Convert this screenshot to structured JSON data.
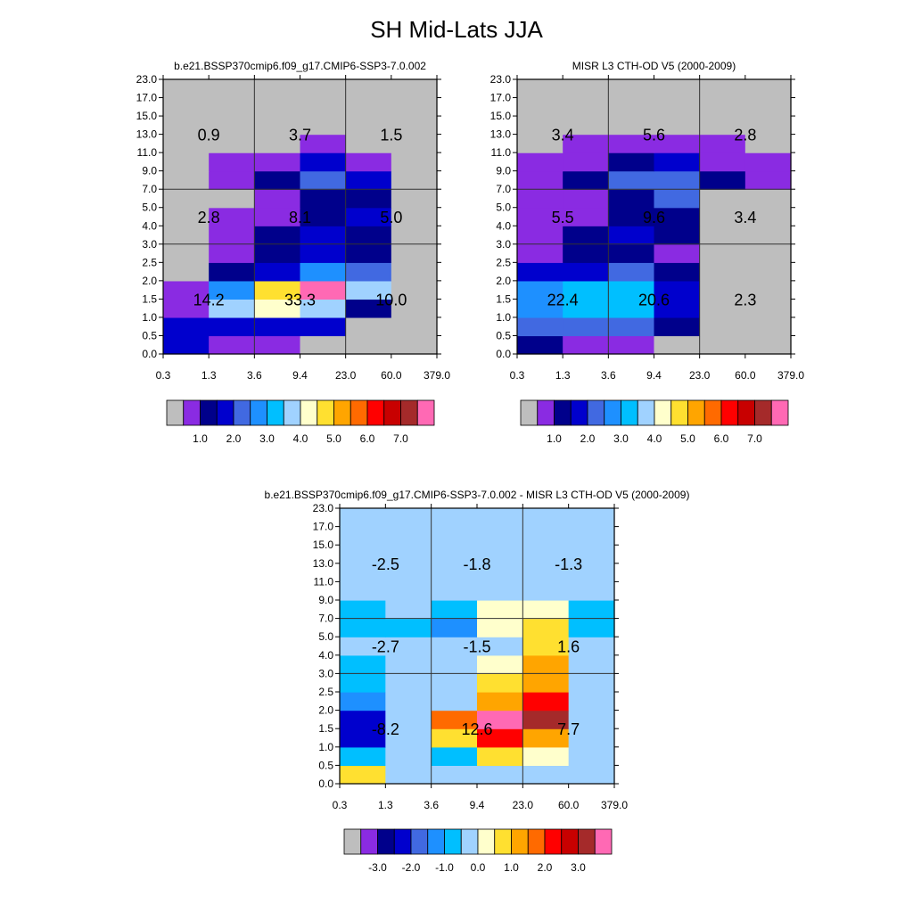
{
  "title": "SH Mid-Lats JJA",
  "palette": [
    "#bebebe",
    "#8a2be2",
    "#00008b",
    "#0000cd",
    "#4169e1",
    "#1e90ff",
    "#00bfff",
    "#a0d2ff",
    "#ffffcc",
    "#ffe030",
    "#ffa500",
    "#ff6a00",
    "#ff0000",
    "#c80000",
    "#a52a2a",
    "#ff69b4"
  ],
  "chart_data": [
    {
      "type": "heatmap",
      "title": "b.e21.BSSP370cmip6.f09_g17.CMIP6-SSP3-7.0.002",
      "x_ticks": [
        "0.3",
        "1.3",
        "3.6",
        "9.4",
        "23.0",
        "60.0",
        "379.0"
      ],
      "y_ticks": [
        "0.0",
        "0.5",
        "1.0",
        "1.5",
        "2.0",
        "2.5",
        "3.0",
        "4.0",
        "5.0",
        "7.0",
        "9.0",
        "11.0",
        "13.0",
        "15.0",
        "17.0",
        "23.0"
      ],
      "cells_bottom_to_top_color_index": [
        [
          3,
          1,
          1,
          0,
          0,
          0
        ],
        [
          3,
          3,
          3,
          3,
          0,
          0
        ],
        [
          1,
          7,
          8,
          7,
          2,
          0
        ],
        [
          1,
          5,
          9,
          15,
          7,
          0
        ],
        [
          0,
          2,
          3,
          5,
          4,
          0
        ],
        [
          0,
          1,
          2,
          3,
          2,
          0
        ],
        [
          0,
          1,
          2,
          3,
          2,
          0
        ],
        [
          0,
          1,
          1,
          2,
          3,
          0
        ],
        [
          0,
          0,
          1,
          2,
          2,
          0
        ],
        [
          0,
          1,
          2,
          4,
          3,
          0
        ],
        [
          0,
          1,
          1,
          3,
          1,
          0
        ],
        [
          0,
          0,
          0,
          1,
          0,
          0
        ],
        [
          0,
          0,
          0,
          0,
          0,
          0
        ],
        [
          0,
          0,
          0,
          0,
          0,
          0
        ],
        [
          0,
          0,
          0,
          0,
          0,
          0
        ]
      ],
      "region_totals": [
        {
          "col": 0,
          "row": 0,
          "label": "14.2"
        },
        {
          "col": 1,
          "row": 0,
          "label": "33.3"
        },
        {
          "col": 2,
          "row": 0,
          "label": "10.0"
        },
        {
          "col": 0,
          "row": 1,
          "label": "2.8"
        },
        {
          "col": 1,
          "row": 1,
          "label": "8.1"
        },
        {
          "col": 2,
          "row": 1,
          "label": "5.0"
        },
        {
          "col": 0,
          "row": 2,
          "label": "0.9"
        },
        {
          "col": 1,
          "row": 2,
          "label": "3.7"
        },
        {
          "col": 2,
          "row": 2,
          "label": "1.5"
        }
      ],
      "colorbar_labels": [
        "1.0",
        "2.0",
        "3.0",
        "4.0",
        "5.0",
        "6.0",
        "7.0"
      ]
    },
    {
      "type": "heatmap",
      "title": "MISR L3 CTH-OD V5 (2000-2009)",
      "x_ticks": [
        "0.3",
        "1.3",
        "3.6",
        "9.4",
        "23.0",
        "60.0",
        "379.0"
      ],
      "y_ticks": [
        "0.0",
        "0.5",
        "1.0",
        "1.5",
        "2.0",
        "2.5",
        "3.0",
        "4.0",
        "5.0",
        "7.0",
        "9.0",
        "11.0",
        "13.0",
        "15.0",
        "17.0",
        "23.0"
      ],
      "cells_bottom_to_top_color_index": [
        [
          2,
          1,
          1,
          0,
          0,
          0
        ],
        [
          4,
          4,
          4,
          2,
          0,
          0
        ],
        [
          5,
          6,
          6,
          3,
          0,
          0
        ],
        [
          5,
          6,
          6,
          3,
          0,
          0
        ],
        [
          3,
          3,
          4,
          2,
          0,
          0
        ],
        [
          1,
          2,
          2,
          1,
          0,
          0
        ],
        [
          1,
          2,
          3,
          2,
          0,
          0
        ],
        [
          1,
          1,
          2,
          2,
          0,
          0
        ],
        [
          1,
          1,
          2,
          4,
          0,
          0
        ],
        [
          1,
          2,
          4,
          4,
          2,
          1
        ],
        [
          1,
          1,
          2,
          3,
          1,
          1
        ],
        [
          0,
          1,
          1,
          1,
          1,
          0
        ],
        [
          0,
          0,
          0,
          0,
          0,
          0
        ],
        [
          0,
          0,
          0,
          0,
          0,
          0
        ],
        [
          0,
          0,
          0,
          0,
          0,
          0
        ]
      ],
      "region_totals": [
        {
          "col": 0,
          "row": 0,
          "label": "22.4"
        },
        {
          "col": 1,
          "row": 0,
          "label": "20.6"
        },
        {
          "col": 2,
          "row": 0,
          "label": "2.3"
        },
        {
          "col": 0,
          "row": 1,
          "label": "5.5"
        },
        {
          "col": 1,
          "row": 1,
          "label": "9.6"
        },
        {
          "col": 2,
          "row": 1,
          "label": "3.4"
        },
        {
          "col": 0,
          "row": 2,
          "label": "3.4"
        },
        {
          "col": 1,
          "row": 2,
          "label": "5.6"
        },
        {
          "col": 2,
          "row": 2,
          "label": "2.8"
        }
      ],
      "colorbar_labels": [
        "1.0",
        "2.0",
        "3.0",
        "4.0",
        "5.0",
        "6.0",
        "7.0"
      ]
    },
    {
      "type": "heatmap",
      "title": "b.e21.BSSP370cmip6.f09_g17.CMIP6-SSP3-7.0.002 - MISR L3 CTH-OD V5 (2000-2009)",
      "x_ticks": [
        "0.3",
        "1.3",
        "3.6",
        "9.4",
        "23.0",
        "60.0",
        "379.0"
      ],
      "y_ticks": [
        "0.0",
        "0.5",
        "1.0",
        "1.5",
        "2.0",
        "2.5",
        "3.0",
        "4.0",
        "5.0",
        "7.0",
        "9.0",
        "11.0",
        "13.0",
        "15.0",
        "17.0",
        "23.0"
      ],
      "cells_bottom_to_top_color_index": [
        [
          9,
          7,
          7,
          7,
          7,
          7
        ],
        [
          6,
          7,
          6,
          9,
          8,
          7
        ],
        [
          3,
          7,
          9,
          12,
          10,
          7
        ],
        [
          3,
          7,
          11,
          15,
          14,
          7
        ],
        [
          5,
          7,
          7,
          10,
          12,
          7
        ],
        [
          6,
          7,
          7,
          9,
          10,
          7
        ],
        [
          6,
          7,
          7,
          8,
          10,
          7
        ],
        [
          7,
          7,
          7,
          7,
          9,
          7
        ],
        [
          6,
          6,
          5,
          8,
          9,
          6
        ],
        [
          6,
          7,
          6,
          8,
          8,
          6
        ],
        [
          7,
          7,
          7,
          7,
          7,
          7
        ],
        [
          7,
          7,
          7,
          7,
          7,
          7
        ],
        [
          7,
          7,
          7,
          7,
          7,
          7
        ],
        [
          7,
          7,
          7,
          7,
          7,
          7
        ],
        [
          7,
          7,
          7,
          7,
          7,
          7
        ]
      ],
      "region_totals": [
        {
          "col": 0,
          "row": 0,
          "label": "-8.2"
        },
        {
          "col": 1,
          "row": 0,
          "label": "12.6"
        },
        {
          "col": 2,
          "row": 0,
          "label": "7.7"
        },
        {
          "col": 0,
          "row": 1,
          "label": "-2.7"
        },
        {
          "col": 1,
          "row": 1,
          "label": "-1.5"
        },
        {
          "col": 2,
          "row": 1,
          "label": "1.6"
        },
        {
          "col": 0,
          "row": 2,
          "label": "-2.5"
        },
        {
          "col": 1,
          "row": 2,
          "label": "-1.8"
        },
        {
          "col": 2,
          "row": 2,
          "label": "-1.3"
        }
      ],
      "colorbar_labels": [
        "-3.0",
        "-2.0",
        "-1.0",
        "0.0",
        "1.0",
        "2.0",
        "3.0"
      ]
    }
  ]
}
